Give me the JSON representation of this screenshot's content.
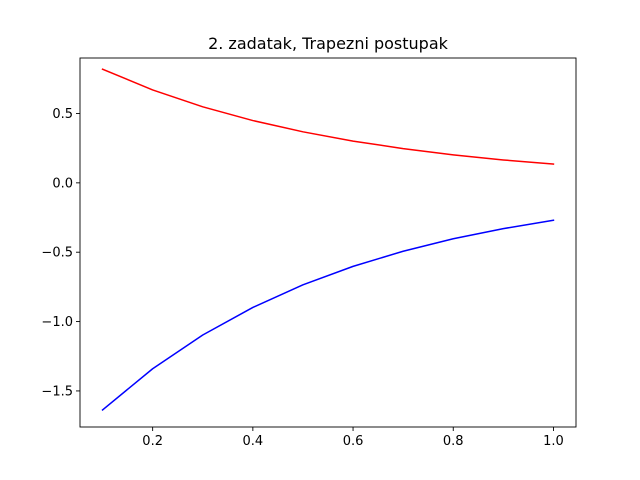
{
  "chart_data": {
    "type": "line",
    "title": "2. zadatak, Trapezni postupak",
    "xlabel": "",
    "ylabel": "",
    "xlim": [
      0.055,
      1.045
    ],
    "ylim": [
      -1.76,
      0.9
    ],
    "grid": false,
    "legend": "none",
    "x_ticks": [
      0.2,
      0.4,
      0.6,
      0.8,
      1.0
    ],
    "x_tick_labels": [
      "0.2",
      "0.4",
      "0.6",
      "0.8",
      "1.0"
    ],
    "y_ticks": [
      -1.5,
      -1.0,
      -0.5,
      0.0,
      0.5
    ],
    "y_tick_labels": [
      "−1.5",
      "−1.0",
      "−0.5",
      "0.0",
      "0.5"
    ],
    "x": [
      0.1,
      0.2,
      0.3,
      0.4,
      0.5,
      0.6,
      0.7,
      0.8,
      0.9,
      1.0
    ],
    "series": [
      {
        "color": "#ff0000",
        "values": [
          0.819,
          0.67,
          0.548,
          0.449,
          0.368,
          0.301,
          0.247,
          0.202,
          0.165,
          0.135
        ]
      },
      {
        "color": "#0000ff",
        "values": [
          -1.637,
          -1.34,
          -1.097,
          -0.898,
          -0.735,
          -0.602,
          -0.493,
          -0.403,
          -0.33,
          -0.27
        ]
      }
    ]
  }
}
